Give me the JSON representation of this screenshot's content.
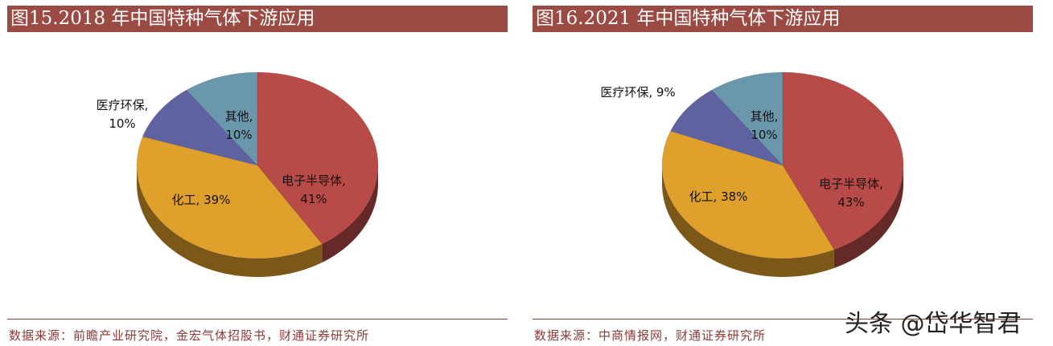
{
  "chart_data": [
    {
      "type": "pie",
      "title": "图15.2018 年中国特种气体下游应用",
      "slices": [
        {
          "label": "电子半导体",
          "value": 41,
          "display": "41%",
          "color": "#b84a47"
        },
        {
          "label": "化工",
          "value": 39,
          "display": "39%",
          "color": "#e0a02c"
        },
        {
          "label": "医疗环保",
          "value": 10,
          "display": "10%",
          "color": "#5e62a0"
        },
        {
          "label": "其他",
          "value": 10,
          "display": "10%",
          "color": "#6a97ab"
        }
      ],
      "source": "数据来源：前瞻产业研究院，金宏气体招股书，财通证券研究所"
    },
    {
      "type": "pie",
      "title": "图16.2021 年中国特种气体下游应用",
      "slices": [
        {
          "label": "电子半导体",
          "value": 43,
          "display": "43%",
          "color": "#b84a47"
        },
        {
          "label": "化工",
          "value": 38,
          "display": "38%",
          "color": "#e0a02c"
        },
        {
          "label": "医疗环保",
          "value": 9,
          "display": "9%",
          "color": "#5e62a0"
        },
        {
          "label": "其他",
          "value": 10,
          "display": "10%",
          "color": "#6a97ab"
        }
      ],
      "source": "数据来源：中商情报网，财通证券研究所"
    }
  ],
  "watermark": "头条 @岱华智君"
}
